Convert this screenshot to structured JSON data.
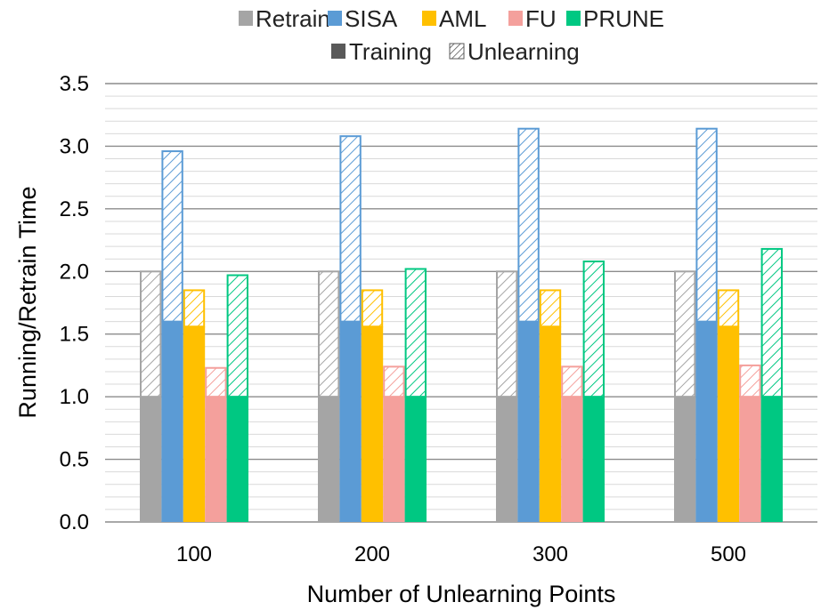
{
  "chart_data": {
    "type": "bar",
    "stacked": true,
    "title": "",
    "xlabel": "Number of Unlearning Points",
    "ylabel": "Running/Retrain Time",
    "categories": [
      "100",
      "200",
      "300",
      "500"
    ],
    "ylim": [
      0,
      3.5
    ],
    "yticks": [
      "0.0",
      "0.5",
      "1.0",
      "1.5",
      "2.0",
      "2.5",
      "3.0",
      "3.5"
    ],
    "ytick_values": [
      0,
      0.5,
      1.0,
      1.5,
      2.0,
      2.5,
      3.0,
      3.5
    ],
    "grid": true,
    "legend_position": "top",
    "legend_methods": [
      "Retrain",
      "SISA",
      "AML",
      "FU",
      "PRUNE"
    ],
    "legend_phases": [
      "Training",
      "Unlearning"
    ],
    "series": [
      {
        "name": "Retrain",
        "color": "#a5a5a5",
        "training": [
          1.0,
          1.0,
          1.0,
          1.0
        ],
        "total": [
          2.0,
          2.0,
          2.0,
          2.0
        ]
      },
      {
        "name": "SISA",
        "color": "#5b9bd5",
        "training": [
          1.6,
          1.6,
          1.6,
          1.6
        ],
        "total": [
          2.96,
          3.08,
          3.14,
          3.14
        ]
      },
      {
        "name": "AML",
        "color": "#ffc000",
        "training": [
          1.56,
          1.56,
          1.56,
          1.56
        ],
        "total": [
          1.85,
          1.85,
          1.85,
          1.85
        ]
      },
      {
        "name": "FU",
        "color": "#f4a09c",
        "training": [
          1.0,
          1.0,
          1.0,
          1.0
        ],
        "total": [
          1.23,
          1.24,
          1.24,
          1.25
        ]
      },
      {
        "name": "PRUNE",
        "color": "#00c882",
        "training": [
          1.0,
          1.0,
          1.0,
          1.0
        ],
        "total": [
          1.97,
          2.02,
          2.08,
          2.18
        ]
      }
    ]
  }
}
